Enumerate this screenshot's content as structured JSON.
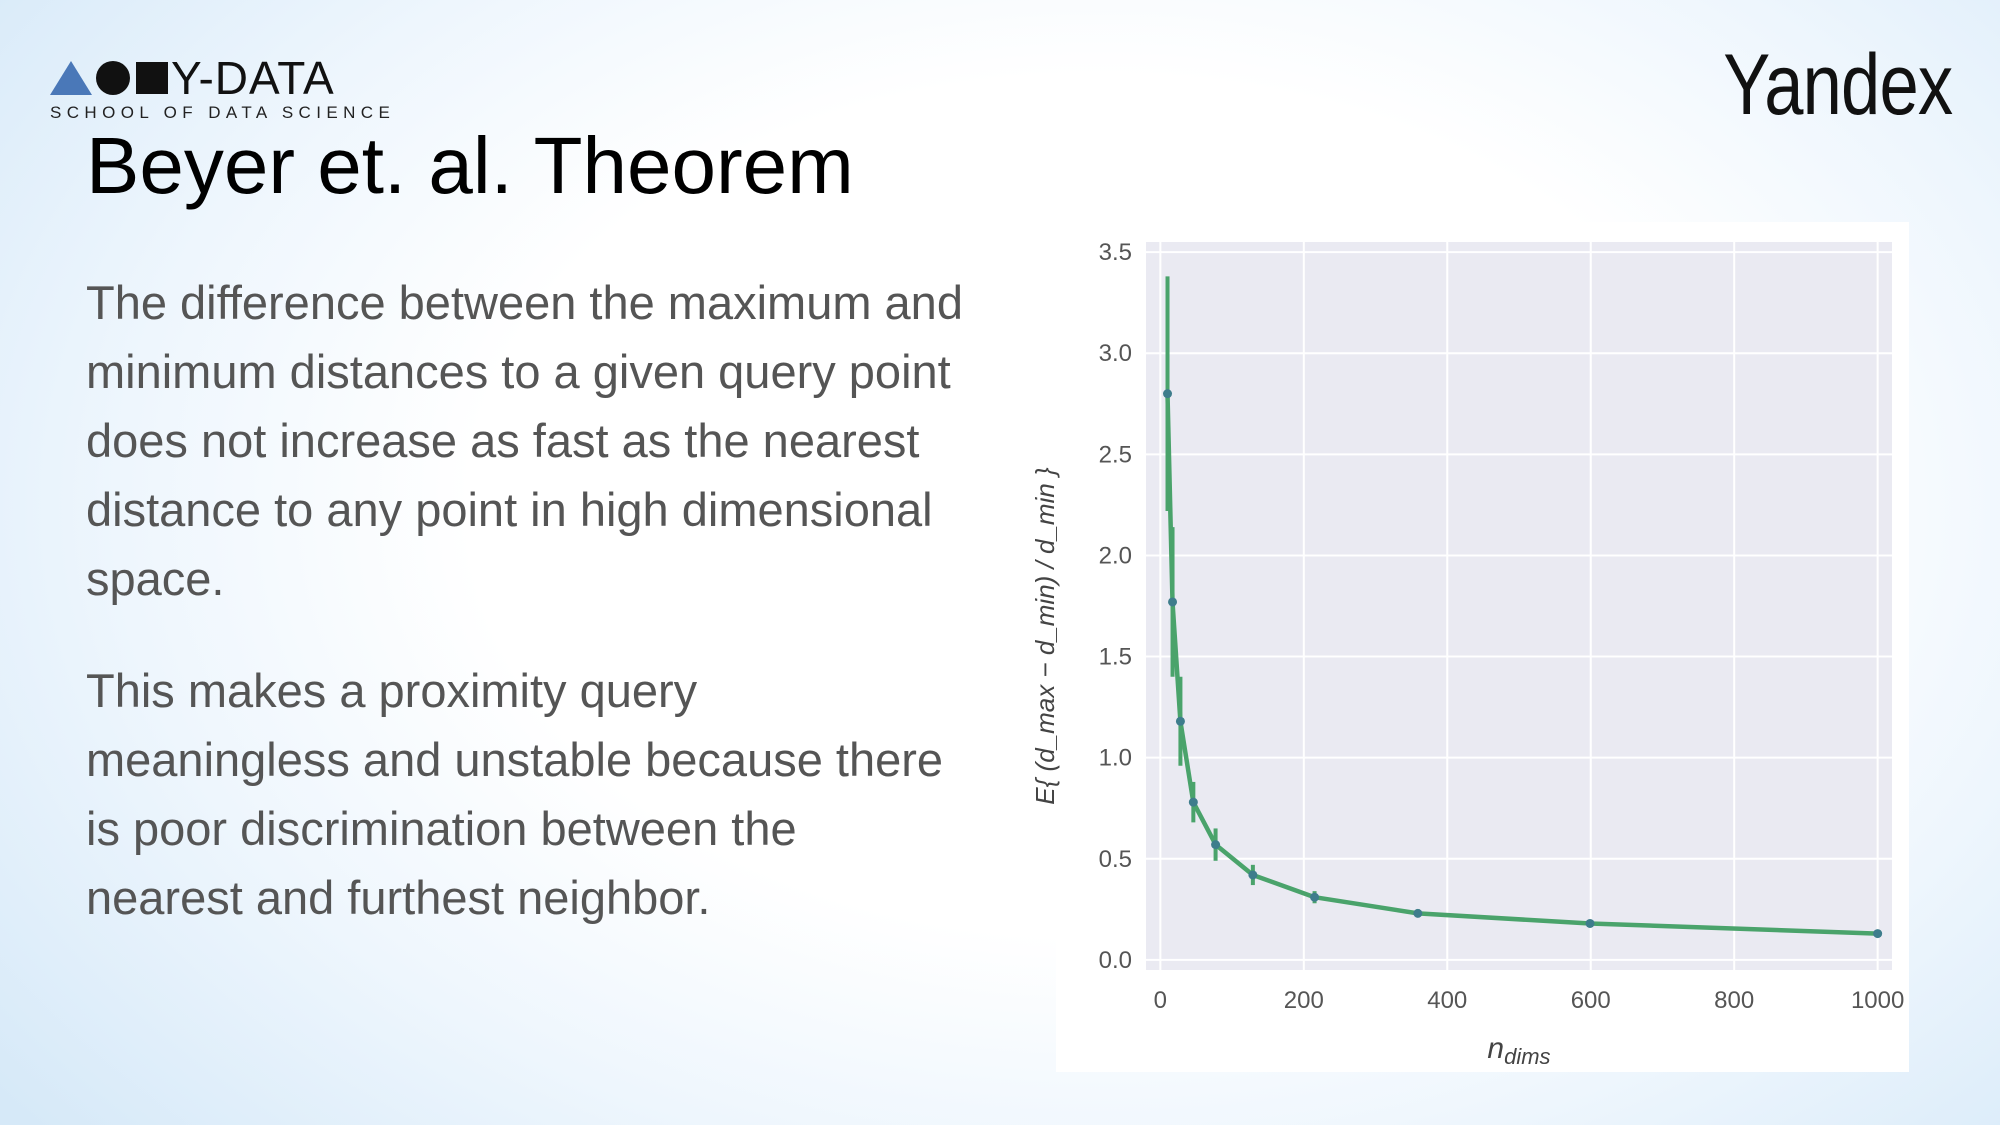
{
  "logo": {
    "name": "Y-DATA",
    "subtitle": "SCHOOL OF DATA SCIENCE"
  },
  "brand": "Yandex",
  "slide": {
    "title": "Beyer et. al. Theorem",
    "paragraph1": "The difference between the maximum and minimum distances to a given query point does not increase as fast as the nearest distance to any point in high dimensional space.",
    "paragraph2": "This makes a proximity query meaningless and unstable because there is poor discrimination between the nearest and furthest neighbor."
  },
  "chart_data": {
    "type": "line",
    "xlabel": "n_dims",
    "ylabel": "E{(d_max − d_min)/d_min}",
    "xlim": [
      -20,
      1020
    ],
    "ylim": [
      -0.05,
      3.55
    ],
    "xticks": [
      0,
      200,
      400,
      600,
      800,
      1000
    ],
    "yticks": [
      0.0,
      0.5,
      1.0,
      1.5,
      2.0,
      2.5,
      3.0,
      3.5
    ],
    "grid": true,
    "line_color": "#4aa36b",
    "marker_color": "#3e7d8c",
    "background_color": "#eaeaf2",
    "series": [
      {
        "x": [
          10,
          17,
          28,
          46,
          77,
          129,
          215,
          359,
          599,
          1000
        ],
        "y": [
          2.8,
          1.77,
          1.18,
          0.78,
          0.57,
          0.42,
          0.31,
          0.23,
          0.18,
          0.13
        ],
        "err": [
          0.58,
          0.37,
          0.22,
          0.1,
          0.08,
          0.05,
          0.03,
          0.02,
          0.015,
          0.01
        ]
      }
    ]
  }
}
